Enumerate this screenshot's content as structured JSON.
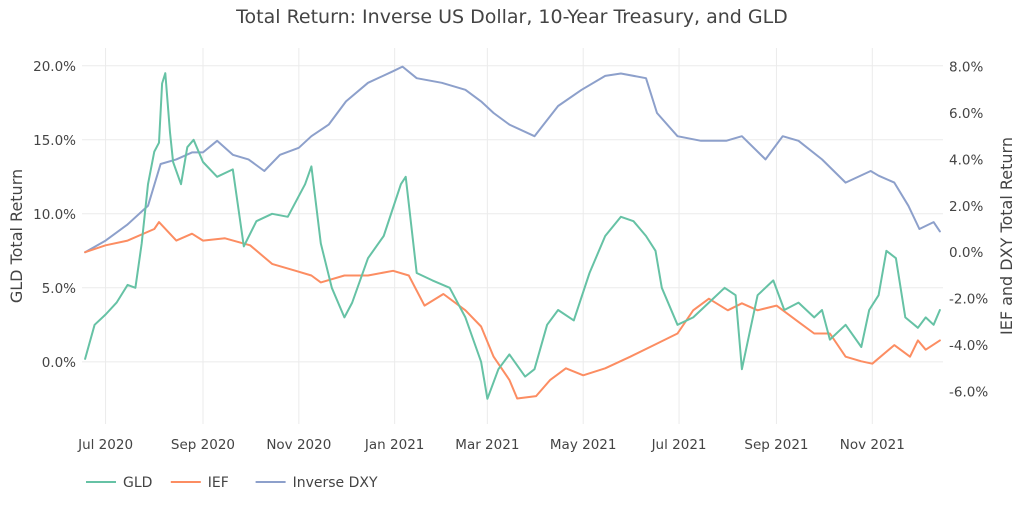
{
  "chart_data": {
    "type": "line",
    "title": "Total Return: Inverse US Dollar, 10-Year Treasury, and GLD",
    "x_axis": {
      "type": "date",
      "range": [
        "2020-06-16",
        "2021-12-16"
      ],
      "tick_labels": [
        "Jul 2020",
        "Sep 2020",
        "Nov 2020",
        "Jan 2021",
        "Mar 2021",
        "May 2021",
        "Jul 2021",
        "Sep 2021",
        "Nov 2021"
      ],
      "tick_dates": [
        "2020-07-01",
        "2020-09-01",
        "2020-11-01",
        "2021-01-01",
        "2021-03-01",
        "2021-05-01",
        "2021-07-01",
        "2021-09-01",
        "2021-11-01"
      ]
    },
    "y_left": {
      "label": "GLD Total Return",
      "range": [
        -4.2,
        21.2
      ],
      "tick_values": [
        0,
        5,
        10,
        15,
        20
      ],
      "tick_labels": [
        "0.0%",
        "5.0%",
        "10.0%",
        "15.0%",
        "20.0%"
      ]
    },
    "y_right": {
      "label": "IEF and DXY Total Return",
      "range": [
        -7.4,
        8.8
      ],
      "tick_values": [
        -6,
        -4,
        -2,
        0,
        2,
        4,
        6,
        8
      ],
      "tick_labels": [
        "-6.0%",
        "-4.0%",
        "-2.0%",
        "0.0%",
        "2.0%",
        "4.0%",
        "6.0%",
        "8.0%"
      ]
    },
    "grid": true,
    "legend": {
      "placement": "bottom-left"
    },
    "series": [
      {
        "name": "GLD",
        "axis": "left",
        "color": "#66c2a5",
        "x": [
          "2020-06-18",
          "2020-06-24",
          "2020-07-01",
          "2020-07-08",
          "2020-07-15",
          "2020-07-20",
          "2020-07-24",
          "2020-07-28",
          "2020-08-01",
          "2020-08-04",
          "2020-08-06",
          "2020-08-08",
          "2020-08-11",
          "2020-08-13",
          "2020-08-18",
          "2020-08-22",
          "2020-08-26",
          "2020-09-01",
          "2020-09-10",
          "2020-09-20",
          "2020-09-27",
          "2020-10-05",
          "2020-10-15",
          "2020-10-25",
          "2020-11-05",
          "2020-11-09",
          "2020-11-15",
          "2020-11-22",
          "2020-11-30",
          "2020-12-05",
          "2020-12-15",
          "2020-12-25",
          "2021-01-05",
          "2021-01-08",
          "2021-01-15",
          "2021-01-25",
          "2021-02-05",
          "2021-02-15",
          "2021-02-25",
          "2021-03-01",
          "2021-03-08",
          "2021-03-15",
          "2021-03-25",
          "2021-03-31",
          "2021-04-08",
          "2021-04-15",
          "2021-04-25",
          "2021-05-05",
          "2021-05-15",
          "2021-05-25",
          "2021-06-02",
          "2021-06-10",
          "2021-06-16",
          "2021-06-20",
          "2021-06-30",
          "2021-07-10",
          "2021-07-20",
          "2021-07-30",
          "2021-08-06",
          "2021-08-10",
          "2021-08-15",
          "2021-08-20",
          "2021-08-30",
          "2021-09-06",
          "2021-09-15",
          "2021-09-25",
          "2021-09-30",
          "2021-10-05",
          "2021-10-15",
          "2021-10-25",
          "2021-10-30",
          "2021-11-05",
          "2021-11-10",
          "2021-11-16",
          "2021-11-22",
          "2021-11-30",
          "2021-12-05",
          "2021-12-10",
          "2021-12-14"
        ],
        "y": [
          0.2,
          2.5,
          3.2,
          4.0,
          5.2,
          5.0,
          8.0,
          12.0,
          14.2,
          14.8,
          18.8,
          19.5,
          15.5,
          13.5,
          12.0,
          14.5,
          15.0,
          13.5,
          12.5,
          13.0,
          7.8,
          9.5,
          10.0,
          9.8,
          12.0,
          13.2,
          8.0,
          5.0,
          3.0,
          4.0,
          7.0,
          8.5,
          12.0,
          12.5,
          6.0,
          5.5,
          5.0,
          3.0,
          0.0,
          -2.5,
          -0.5,
          0.5,
          -1.0,
          -0.5,
          2.5,
          3.5,
          2.8,
          6.0,
          8.5,
          9.8,
          9.5,
          8.5,
          7.5,
          5.0,
          2.5,
          3.0,
          4.0,
          5.0,
          4.5,
          -0.5,
          2.0,
          4.5,
          5.5,
          3.5,
          4.0,
          3.0,
          3.5,
          1.5,
          2.5,
          1.0,
          3.5,
          4.5,
          7.5,
          7.0,
          3.0,
          2.3,
          3.0,
          2.5,
          3.5
        ]
      },
      {
        "name": "IEF",
        "axis": "right",
        "color": "#fc8d62",
        "x": [
          "2020-06-18",
          "2020-07-01",
          "2020-07-15",
          "2020-08-01",
          "2020-08-04",
          "2020-08-15",
          "2020-08-25",
          "2020-09-01",
          "2020-09-15",
          "2020-10-01",
          "2020-10-15",
          "2020-10-30",
          "2020-11-09",
          "2020-11-15",
          "2020-11-30",
          "2020-12-15",
          "2020-12-31",
          "2021-01-10",
          "2021-01-20",
          "2021-02-01",
          "2021-02-15",
          "2021-02-25",
          "2021-03-05",
          "2021-03-15",
          "2021-03-20",
          "2021-04-01",
          "2021-04-10",
          "2021-04-20",
          "2021-05-01",
          "2021-05-15",
          "2021-05-31",
          "2021-06-15",
          "2021-06-30",
          "2021-07-10",
          "2021-07-20",
          "2021-08-01",
          "2021-08-10",
          "2021-08-20",
          "2021-09-01",
          "2021-09-15",
          "2021-09-25",
          "2021-10-05",
          "2021-10-15",
          "2021-10-25",
          "2021-11-01",
          "2021-11-15",
          "2021-11-25",
          "2021-11-30",
          "2021-12-05",
          "2021-12-14"
        ],
        "y": [
          0.0,
          0.3,
          0.5,
          1.0,
          1.3,
          0.5,
          0.8,
          0.5,
          0.6,
          0.3,
          -0.5,
          -0.8,
          -1.0,
          -1.3,
          -1.0,
          -1.0,
          -0.8,
          -1.0,
          -2.3,
          -1.8,
          -2.5,
          -3.2,
          -4.5,
          -5.5,
          -6.3,
          -6.2,
          -5.5,
          -5.0,
          -5.3,
          -5.0,
          -4.5,
          -4.0,
          -3.5,
          -2.5,
          -2.0,
          -2.5,
          -2.2,
          -2.5,
          -2.3,
          -3.0,
          -3.5,
          -3.5,
          -4.5,
          -4.7,
          -4.8,
          -4.0,
          -4.5,
          -3.8,
          -4.2,
          -3.8
        ]
      },
      {
        "name": "Inverse DXY",
        "axis": "right",
        "color": "#8da0cb",
        "x": [
          "2020-06-18",
          "2020-07-01",
          "2020-07-15",
          "2020-07-28",
          "2020-08-05",
          "2020-08-15",
          "2020-08-25",
          "2020-09-01",
          "2020-09-10",
          "2020-09-20",
          "2020-09-30",
          "2020-10-10",
          "2020-10-20",
          "2020-11-01",
          "2020-11-09",
          "2020-11-20",
          "2020-12-01",
          "2020-12-15",
          "2020-12-31",
          "2021-01-06",
          "2021-01-15",
          "2021-01-31",
          "2021-02-15",
          "2021-02-25",
          "2021-03-05",
          "2021-03-15",
          "2021-03-31",
          "2021-04-15",
          "2021-04-30",
          "2021-05-15",
          "2021-05-25",
          "2021-06-10",
          "2021-06-17",
          "2021-06-30",
          "2021-07-15",
          "2021-07-31",
          "2021-08-10",
          "2021-08-25",
          "2021-09-05",
          "2021-09-15",
          "2021-09-30",
          "2021-10-15",
          "2021-10-31",
          "2021-11-05",
          "2021-11-15",
          "2021-11-24",
          "2021-12-01",
          "2021-12-10",
          "2021-12-14"
        ],
        "y": [
          0.0,
          0.5,
          1.2,
          2.0,
          3.8,
          4.0,
          4.3,
          4.3,
          4.8,
          4.2,
          4.0,
          3.5,
          4.2,
          4.5,
          5.0,
          5.5,
          6.5,
          7.3,
          7.8,
          8.0,
          7.5,
          7.3,
          7.0,
          6.5,
          6.0,
          5.5,
          5.0,
          6.3,
          7.0,
          7.6,
          7.7,
          7.5,
          6.0,
          5.0,
          4.8,
          4.8,
          5.0,
          4.0,
          5.0,
          4.8,
          4.0,
          3.0,
          3.5,
          3.3,
          3.0,
          2.0,
          1.0,
          1.3,
          0.9
        ]
      }
    ]
  }
}
